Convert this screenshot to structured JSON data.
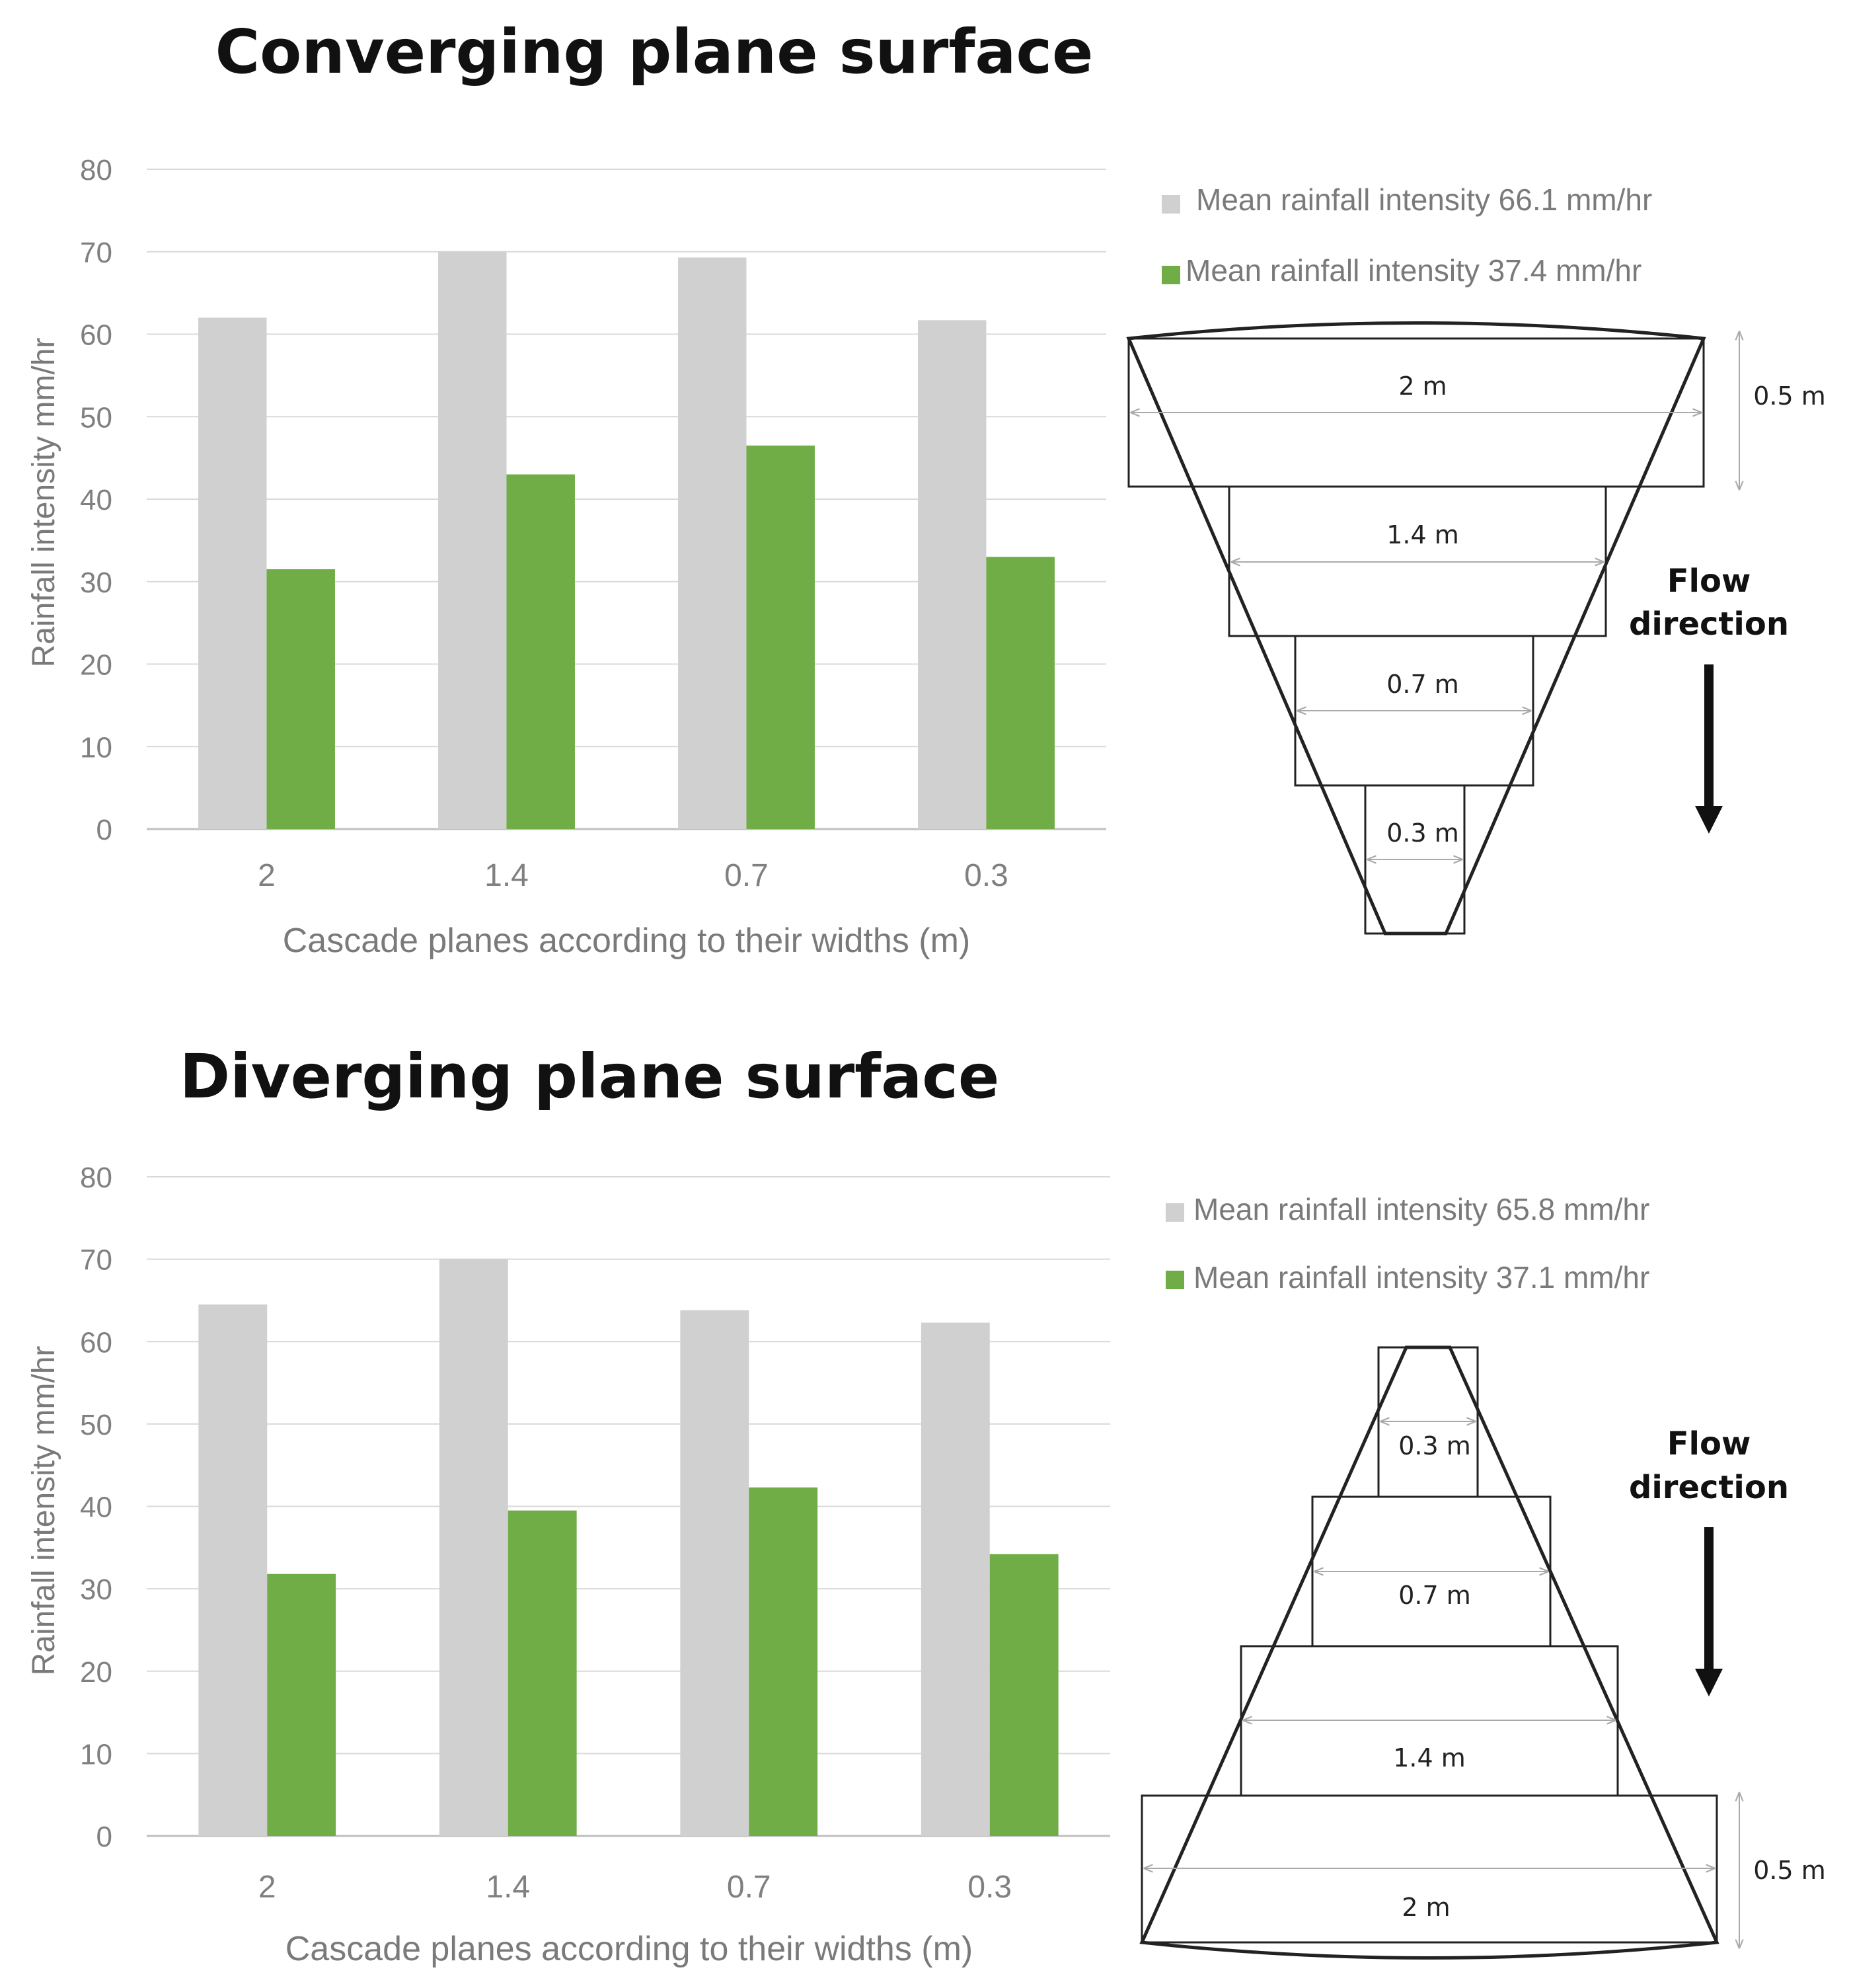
{
  "colors": {
    "grey_series": "#d0d0d0",
    "green_series": "#70ad47",
    "grid": "#d9d9d9",
    "tick_text": "#808080",
    "diagram_line": "#222222"
  },
  "chart_data": [
    {
      "type": "bar",
      "title": "Converging plane surface",
      "xlabel": "Cascade planes according to their widths (m)",
      "ylabel": "Rainfall intensity mm/hr",
      "categories": [
        "2",
        "1.4",
        "0.7",
        "0.3"
      ],
      "ylim": [
        0,
        80
      ],
      "yticks": [
        0,
        10,
        20,
        30,
        40,
        50,
        60,
        70,
        80
      ],
      "grid": true,
      "legend_position": "right",
      "series": [
        {
          "name": "Mean rainfall intensity 66.1 mm/hr",
          "color": "#d0d0d0",
          "values": [
            62,
            70,
            69.3,
            61.7
          ]
        },
        {
          "name": "Mean rainfall intensity 37.4 mm/hr",
          "color": "#70ad47",
          "values": [
            31.5,
            43,
            46.5,
            33
          ]
        }
      ],
      "diagram": {
        "orientation": "converging",
        "plane_labels": [
          "2 m",
          "1.4 m",
          "0.7 m",
          "0.3 m"
        ],
        "height_label": "0.5 m",
        "flow_label_line1": "Flow",
        "flow_label_line2": "direction"
      }
    },
    {
      "type": "bar",
      "title": "Diverging plane surface",
      "xlabel": "Cascade planes according to their widths (m)",
      "ylabel": "Rainfall intensity mm/hr",
      "categories": [
        "2",
        "1.4",
        "0.7",
        "0.3"
      ],
      "ylim": [
        0,
        80
      ],
      "yticks": [
        0,
        10,
        20,
        30,
        40,
        50,
        60,
        70,
        80
      ],
      "grid": true,
      "legend_position": "right",
      "series": [
        {
          "name": "Mean rainfall intensity 65.8 mm/hr",
          "color": "#d0d0d0",
          "values": [
            64.5,
            70,
            63.8,
            62.3
          ]
        },
        {
          "name": "Mean rainfall intensity 37.1 mm/hr",
          "color": "#70ad47",
          "values": [
            31.8,
            39.5,
            42.3,
            34.2
          ]
        }
      ],
      "diagram": {
        "orientation": "diverging",
        "plane_labels": [
          "0.3 m",
          "0.7 m",
          "1.4 m",
          "2 m"
        ],
        "height_label": "0.5 m",
        "flow_label_line1": "Flow",
        "flow_label_line2": "direction"
      }
    }
  ]
}
